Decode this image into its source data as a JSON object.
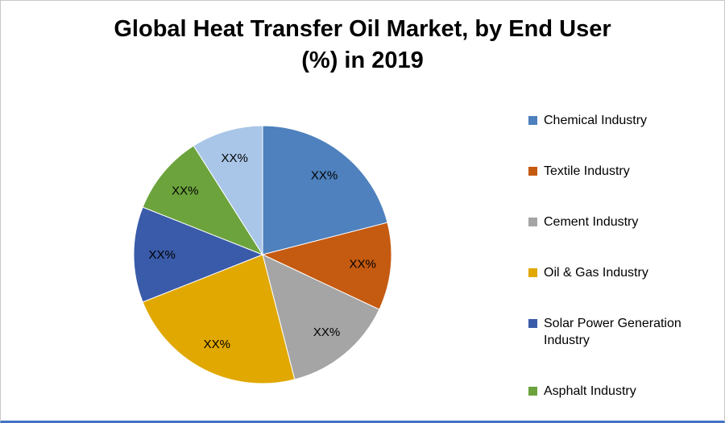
{
  "title": {
    "line1": "Global Heat Transfer Oil Market, by End User",
    "line2": "(%) in 2019"
  },
  "chart_data": {
    "type": "pie",
    "title": "Global Heat Transfer Oil Market, by End User (%) in 2019",
    "unit": "%",
    "year": "2019",
    "data_labels_masked_as": "XX%",
    "legend_position": "right",
    "start_angle_deg": 0,
    "direction": "clockwise",
    "slices": [
      {
        "id": "chemical",
        "label": "Chemical Industry",
        "value": 21,
        "color": "#4E81BD",
        "data_label": "XX%",
        "in_legend": true
      },
      {
        "id": "textile",
        "label": "Textile Industry",
        "value": 11,
        "color": "#C55A11",
        "data_label": "XX%",
        "in_legend": true
      },
      {
        "id": "cement",
        "label": "Cement Industry",
        "value": 14,
        "color": "#A5A5A5",
        "data_label": "XX%",
        "in_legend": true
      },
      {
        "id": "oil-gas",
        "label": "Oil & Gas Industry",
        "value": 23,
        "color": "#E0A800",
        "data_label": "XX%",
        "in_legend": true
      },
      {
        "id": "solar",
        "label": "Solar Power Generation Industry",
        "value": 12,
        "color": "#3A5BA9",
        "data_label": "XX%",
        "in_legend": true
      },
      {
        "id": "asphalt",
        "label": "Asphalt Industry",
        "value": 10,
        "color": "#6CA33D",
        "data_label": "XX%",
        "in_legend": true
      },
      {
        "id": "other",
        "label": "",
        "value": 9,
        "color": "#A9C6E8",
        "data_label": "XX%",
        "in_legend": false
      }
    ]
  },
  "colors": {
    "background": "#FFFFFF",
    "frame_border": "#C8C8C8",
    "bottom_line": "#4472C4",
    "text": "#000000"
  }
}
